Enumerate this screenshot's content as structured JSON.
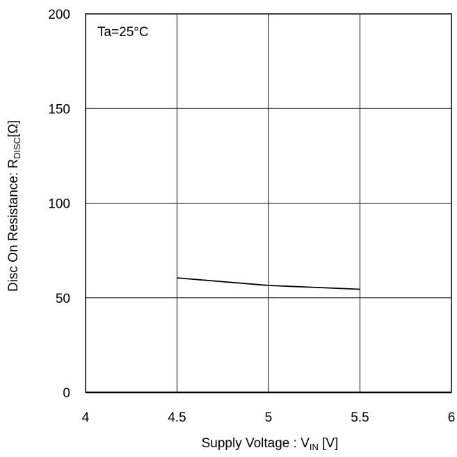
{
  "chart_data": {
    "type": "line",
    "annotation": "Ta=25°C",
    "xlabel": {
      "main": "Supply Voltage : V",
      "sub": "IN",
      "unit": " [V]"
    },
    "ylabel": {
      "main": "Disc On Resistance: R",
      "sub": "DISC",
      "unit": "[Ω]"
    },
    "xlim": [
      4,
      6
    ],
    "ylim": [
      0,
      200
    ],
    "x_ticks": [
      4,
      4.5,
      5,
      5.5,
      6
    ],
    "x_tick_labels": [
      "4",
      "4.5",
      "5",
      "5.5",
      "6"
    ],
    "y_ticks": [
      0,
      50,
      100,
      150,
      200
    ],
    "y_tick_labels": [
      "0",
      "50",
      "100",
      "150",
      "200"
    ],
    "grid": true,
    "series": [
      {
        "x": [
          4.5,
          5.0,
          5.5
        ],
        "y": [
          60.5,
          56.5,
          54.5
        ],
        "color": "#000000"
      }
    ]
  }
}
